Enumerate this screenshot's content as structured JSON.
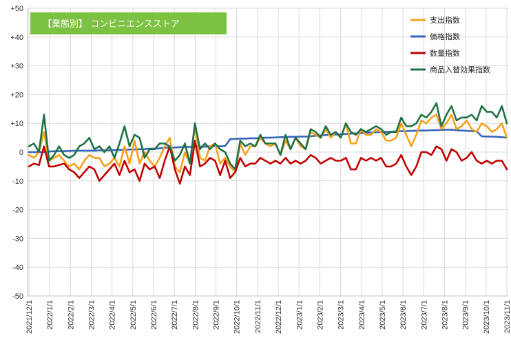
{
  "chart_data": {
    "type": "line",
    "title": "【業態別】 コンビニエンスストア",
    "xlabel": "",
    "ylabel": "",
    "ylim": [
      -50,
      50
    ],
    "yticks": [
      "+50",
      "+40",
      "+30",
      "+20",
      "+10",
      "0",
      "-10",
      "-20",
      "-30",
      "-40",
      "-50"
    ],
    "ytick_values": [
      50,
      40,
      30,
      20,
      10,
      0,
      -10,
      -20,
      -30,
      -40,
      -50
    ],
    "xticks": [
      "2021/12/1",
      "2022/1/1",
      "2022/2/1",
      "2022/3/1",
      "2022/4/1",
      "2022/5/1",
      "2022/6/1",
      "2022/7/1",
      "2022/8/1",
      "2022/9/1",
      "2022/10/1",
      "2022/11/1",
      "2022/12/1",
      "2023/1/1",
      "2023/2/1",
      "2023/3/1",
      "2023/4/1",
      "2023/5/1",
      "2023/6/1",
      "2023/7/1",
      "2023/8/1",
      "2023/9/1",
      "2023/10/1",
      "2023/11/1"
    ],
    "grid": true,
    "legend_position": "top-right",
    "title_bg": "#7DC142",
    "series": [
      {
        "name": "支出指数",
        "color": "#F7A11A",
        "values": [
          -1,
          -2,
          0,
          7,
          -3,
          -2,
          -1,
          -3,
          -5,
          -4,
          -6,
          -3,
          -1,
          -2,
          -2,
          -5,
          -4,
          -2,
          -5,
          2,
          -4,
          4,
          -4,
          0,
          -3,
          -5,
          -2,
          2,
          5,
          -5,
          -7,
          0,
          -4,
          9,
          -2,
          -3,
          2,
          3,
          -4,
          -2,
          -5,
          -7,
          3,
          -1,
          2,
          2,
          5,
          3,
          2,
          3,
          -1,
          4,
          1,
          5,
          2,
          1,
          7,
          6,
          5,
          8,
          5,
          7,
          5,
          10,
          3,
          3,
          8,
          6,
          6,
          8,
          7,
          4,
          4,
          5,
          10,
          6,
          2,
          6,
          11,
          10,
          12,
          13,
          8,
          10,
          13,
          8,
          9,
          11,
          8,
          7,
          10,
          9,
          7,
          8,
          10,
          5
        ]
      },
      {
        "name": "価格指数",
        "color": "#3366BB",
        "values": [
          0,
          0,
          0,
          0,
          0.2,
          0.3,
          0.3,
          0.3,
          0.4,
          0.5,
          0.5,
          0.5,
          0.5,
          0.5,
          0.6,
          0.6,
          0.6,
          0.7,
          0.8,
          0.8,
          0.9,
          0.9,
          1,
          1,
          1.2,
          1.2,
          1.3,
          1.5,
          1.6,
          1.6,
          1.7,
          1.8,
          1.8,
          1.9,
          1.9,
          1.9,
          2,
          2,
          2,
          2.1,
          4.5,
          4.6,
          4.7,
          4.7,
          4.8,
          4.8,
          4.9,
          5,
          5,
          5.1,
          5.2,
          5.2,
          5.3,
          5.3,
          5.4,
          5.4,
          5.5,
          5.7,
          5.8,
          5.9,
          6,
          6.1,
          6.2,
          6.3,
          6.4,
          6.5,
          6.6,
          6.7,
          6.8,
          6.9,
          7,
          7,
          7.1,
          7.2,
          7.3,
          7.3,
          7.4,
          7.4,
          7.5,
          7.5,
          7.6,
          7.6,
          7.7,
          7.8,
          7.8,
          7.6,
          7.5,
          7.4,
          7.3,
          7.2,
          5.5,
          5.4,
          5.4,
          5.3,
          5.2,
          5
        ]
      },
      {
        "name": "数量指数",
        "color": "#C00000",
        "values": [
          -5,
          -4,
          -4.5,
          2,
          -5,
          -5,
          -4.5,
          -4,
          -6,
          -7,
          -9,
          -7,
          -5,
          -6,
          -10,
          -8,
          -6,
          -4,
          -8,
          -3,
          -7,
          -6,
          -10,
          -4,
          -6,
          -5,
          -9,
          -3,
          2,
          -6,
          -11,
          -5,
          -8,
          4,
          -5,
          -4,
          -2,
          -3,
          -8,
          -3,
          -9,
          -7,
          -2,
          -5,
          -4,
          -4,
          -2,
          -3,
          -4,
          -3,
          -4,
          -2,
          -4,
          -3,
          -4,
          -3,
          -1,
          -2,
          -4,
          -3,
          -2,
          -3,
          -3,
          -2,
          -6,
          -6,
          -2,
          -3,
          -2,
          -3,
          -2,
          -5,
          -5,
          -4,
          -1,
          -5,
          -8,
          -5,
          0,
          0,
          -1,
          2,
          1,
          -3,
          1,
          0,
          -3,
          -2,
          0,
          -3,
          -4,
          -3,
          -4,
          -3,
          -3,
          -6
        ]
      },
      {
        "name": "商品入替効果指数",
        "color": "#1E7145",
        "values": [
          2,
          3,
          0,
          13,
          -3,
          -1,
          2,
          -1,
          -2,
          -1,
          2,
          3,
          5,
          1,
          2,
          0,
          2,
          -2,
          3,
          9,
          2,
          6,
          5,
          -2,
          1,
          1,
          3,
          3,
          2,
          -3,
          -1,
          3,
          -4,
          10,
          1,
          3,
          1,
          3,
          1,
          0,
          -4,
          -6,
          4,
          2,
          3,
          2,
          6,
          3,
          3,
          3,
          -1,
          6,
          1,
          5,
          3,
          1,
          8,
          7,
          5,
          9,
          6,
          7,
          5,
          10,
          7,
          6,
          8,
          7,
          8,
          9,
          8,
          6,
          7,
          7,
          12,
          9,
          9,
          10,
          13,
          12,
          14,
          17,
          9,
          13,
          16,
          11,
          12,
          12,
          13,
          11,
          16,
          14,
          14,
          12,
          16,
          10
        ]
      }
    ]
  }
}
